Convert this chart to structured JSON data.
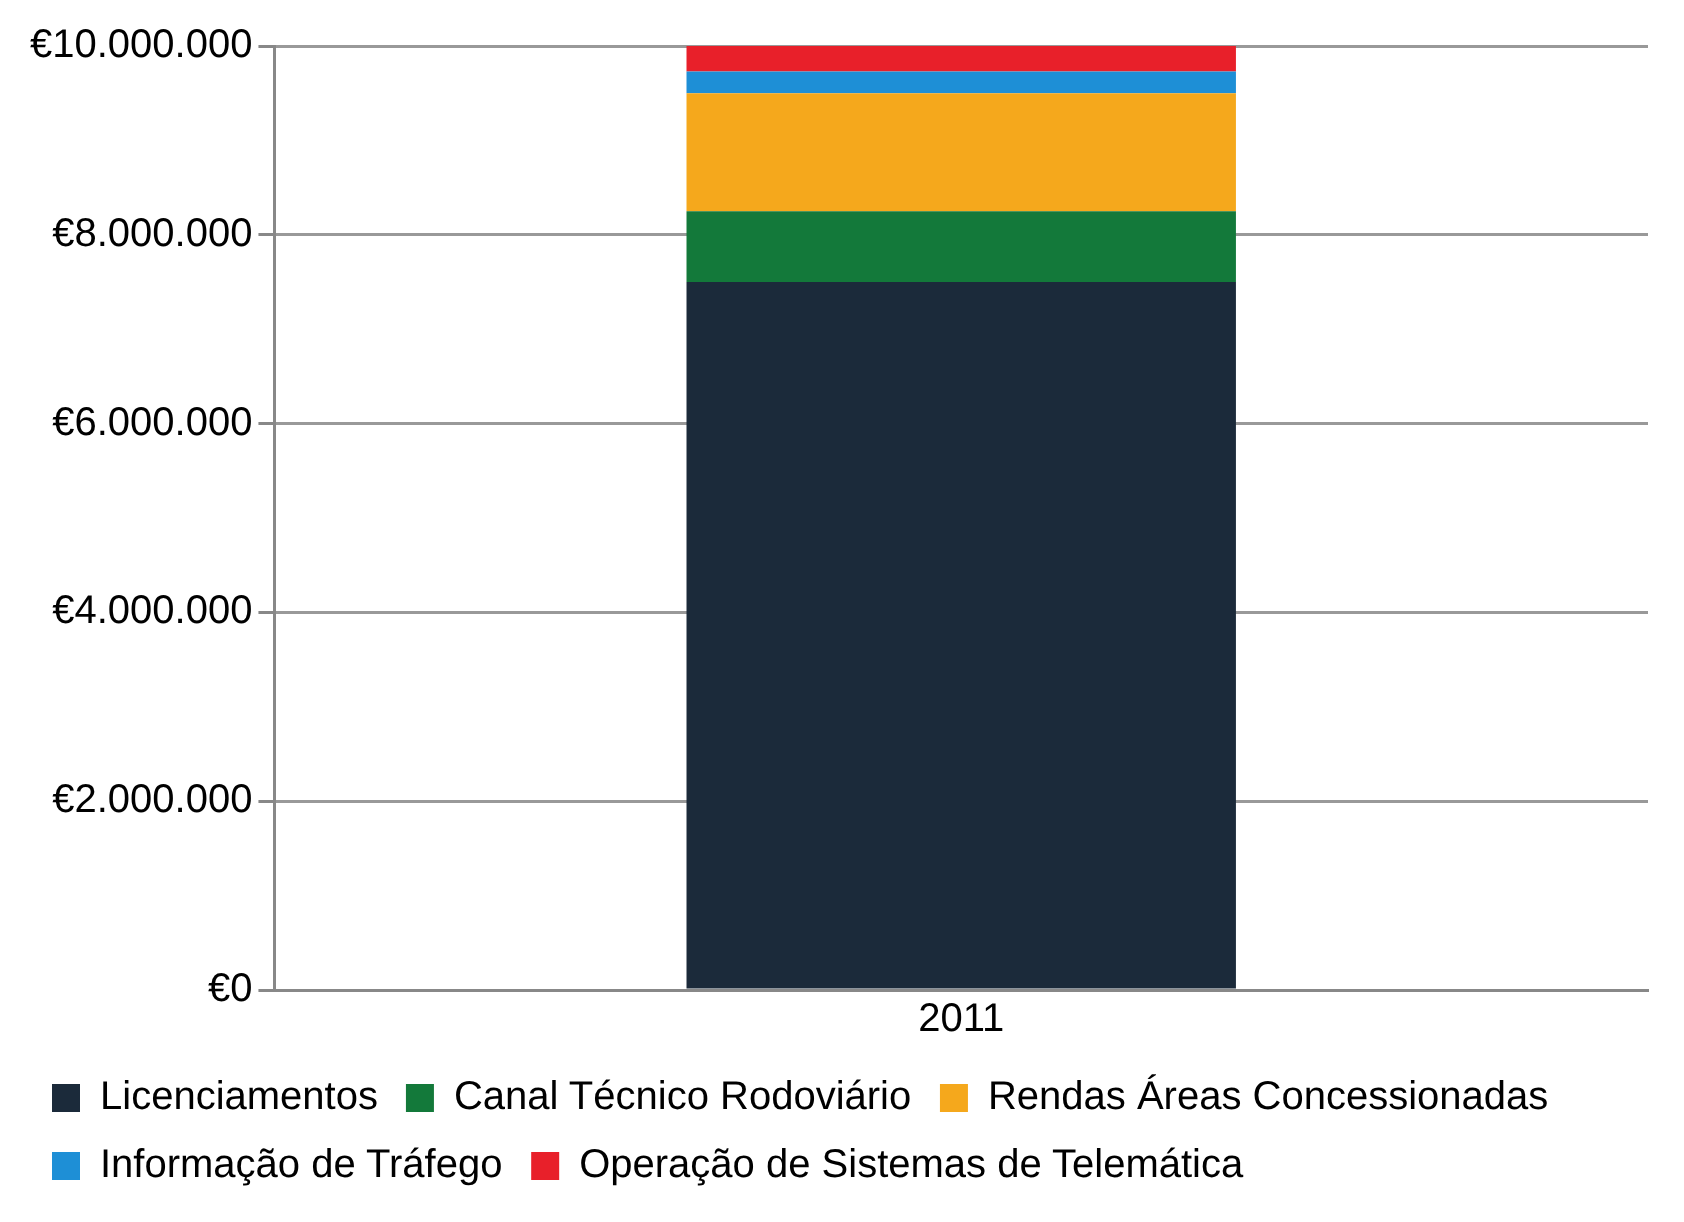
{
  "chart_data": {
    "type": "bar",
    "stacked": true,
    "categories": [
      "2011"
    ],
    "series": [
      {
        "name": "Licenciamentos",
        "color": "#1b2a3a",
        "values": [
          7500000
        ]
      },
      {
        "name": "Canal Técnico Rodoviário",
        "color": "#13793a",
        "values": [
          750000
        ]
      },
      {
        "name": "Rendas Áreas Concessionadas",
        "color": "#f5a81c",
        "values": [
          1250000
        ]
      },
      {
        "name": "Informação de Tráfego",
        "color": "#1e8fd6",
        "values": [
          230000
        ]
      },
      {
        "name": "Operação de Sistemas de Telemática",
        "color": "#e8202a",
        "values": [
          270000
        ]
      }
    ],
    "ylim": [
      0,
      10000000
    ],
    "yticks": [
      {
        "value": 0,
        "label": "€0"
      },
      {
        "value": 2000000,
        "label": "€2.000.000"
      },
      {
        "value": 4000000,
        "label": "€4.000.000"
      },
      {
        "value": 6000000,
        "label": "€6.000.000"
      },
      {
        "value": 8000000,
        "label": "€8.000.000"
      },
      {
        "value": 10000000,
        "label": "€10.000.000"
      }
    ],
    "grid": "y",
    "legend": "bottom"
  }
}
